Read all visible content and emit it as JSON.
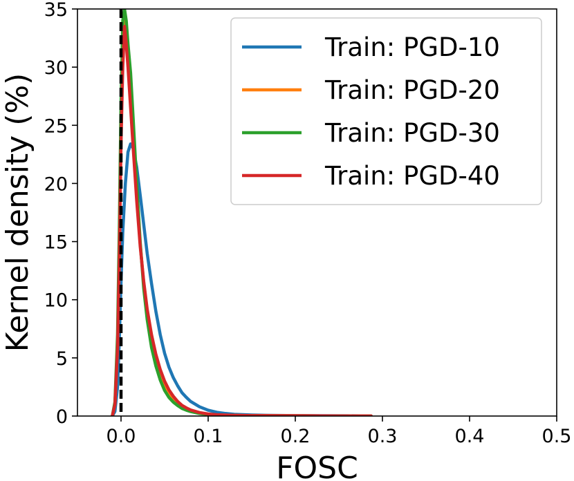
{
  "chart_data": {
    "type": "line",
    "title": "",
    "xlabel": "FOSC",
    "ylabel": "Kernel density (%)",
    "xlim": [
      -0.05,
      0.5
    ],
    "ylim": [
      0,
      35
    ],
    "xticks": [
      0.0,
      0.1,
      0.2,
      0.3,
      0.4,
      0.5
    ],
    "xtick_labels": [
      "0.0",
      "0.1",
      "0.2",
      "0.3",
      "0.4",
      "0.5"
    ],
    "yticks": [
      0,
      5,
      10,
      15,
      20,
      25,
      30,
      35
    ],
    "ytick_labels": [
      "0",
      "5",
      "10",
      "15",
      "20",
      "25",
      "30",
      "35"
    ],
    "legend_position": "upper-right",
    "vline": {
      "x": 0.0,
      "style": "dashed",
      "color": "#000000"
    },
    "series": [
      {
        "name": "Train: PGD-10",
        "color": "#1f77b4",
        "x": [
          -0.01,
          -0.007,
          -0.004,
          -0.002,
          0.0,
          0.002,
          0.005,
          0.008,
          0.011,
          0.014,
          0.018,
          0.022,
          0.026,
          0.03,
          0.035,
          0.04,
          0.045,
          0.05,
          0.055,
          0.06,
          0.065,
          0.07,
          0.075,
          0.08,
          0.09,
          0.1,
          0.11,
          0.12,
          0.13,
          0.15,
          0.17,
          0.2,
          0.23,
          0.26,
          0.287
        ],
        "y": [
          0,
          0.4,
          2.5,
          6.5,
          11.5,
          15.8,
          20.0,
          22.7,
          23.4,
          23.0,
          21.4,
          19.0,
          16.5,
          14.0,
          11.4,
          9.0,
          7.0,
          5.4,
          4.2,
          3.3,
          2.6,
          2.0,
          1.6,
          1.25,
          0.8,
          0.5,
          0.32,
          0.22,
          0.15,
          0.09,
          0.06,
          0.04,
          0.03,
          0.02,
          0.01
        ]
      },
      {
        "name": "Train: PGD-20",
        "color": "#ff7f0e",
        "x": [
          -0.01,
          -0.007,
          -0.004,
          -0.002,
          0.0,
          0.002,
          0.004,
          0.006,
          0.008,
          0.011,
          0.014,
          0.018,
          0.022,
          0.026,
          0.03,
          0.035,
          0.04,
          0.045,
          0.05,
          0.055,
          0.06,
          0.065,
          0.07,
          0.075,
          0.08,
          0.09,
          0.1,
          0.11,
          0.13,
          0.15,
          0.18,
          0.21,
          0.25,
          0.287
        ],
        "y": [
          0,
          1.0,
          6.0,
          14.0,
          24.0,
          31.0,
          34.5,
          33.5,
          31.0,
          27.5,
          23.5,
          19.0,
          14.8,
          11.5,
          9.0,
          6.7,
          5.0,
          3.7,
          2.7,
          2.0,
          1.5,
          1.1,
          0.8,
          0.6,
          0.45,
          0.25,
          0.15,
          0.1,
          0.06,
          0.04,
          0.03,
          0.02,
          0.01,
          0.01
        ]
      },
      {
        "name": "Train: PGD-30",
        "color": "#2ca02c",
        "x": [
          -0.01,
          -0.007,
          -0.004,
          -0.002,
          0.0,
          0.002,
          0.004,
          0.006,
          0.008,
          0.011,
          0.014,
          0.018,
          0.022,
          0.026,
          0.03,
          0.035,
          0.04,
          0.045,
          0.05,
          0.055,
          0.06,
          0.065,
          0.07,
          0.075,
          0.08,
          0.09,
          0.1,
          0.11,
          0.13,
          0.15,
          0.18,
          0.21,
          0.25,
          0.287
        ],
        "y": [
          0,
          1.2,
          7.0,
          16.0,
          27.0,
          34.0,
          35.0,
          34.0,
          32.0,
          29.5,
          25.5,
          20.0,
          15.0,
          11.0,
          8.3,
          5.9,
          4.3,
          3.1,
          2.2,
          1.6,
          1.2,
          0.9,
          0.65,
          0.5,
          0.38,
          0.22,
          0.13,
          0.09,
          0.05,
          0.03,
          0.02,
          0.02,
          0.01,
          0.01
        ]
      },
      {
        "name": "Train: PGD-40",
        "color": "#d62728",
        "x": [
          -0.01,
          -0.007,
          -0.004,
          -0.002,
          0.0,
          0.002,
          0.004,
          0.006,
          0.008,
          0.011,
          0.014,
          0.018,
          0.022,
          0.026,
          0.03,
          0.035,
          0.04,
          0.045,
          0.05,
          0.055,
          0.06,
          0.065,
          0.07,
          0.075,
          0.08,
          0.09,
          0.1,
          0.11,
          0.13,
          0.15,
          0.18,
          0.21,
          0.25,
          0.287
        ],
        "y": [
          0,
          1.0,
          5.8,
          13.5,
          23.5,
          30.0,
          33.5,
          32.0,
          30.0,
          26.5,
          23.0,
          18.5,
          14.6,
          11.6,
          9.2,
          7.0,
          5.3,
          4.0,
          3.0,
          2.25,
          1.7,
          1.25,
          0.92,
          0.7,
          0.52,
          0.3,
          0.18,
          0.11,
          0.06,
          0.04,
          0.03,
          0.02,
          0.01,
          0.01
        ]
      }
    ]
  }
}
